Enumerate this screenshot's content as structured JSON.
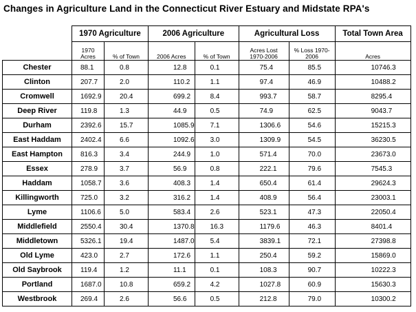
{
  "title": "Changes in Agriculture Land in the Connecticut River Estuary and Midstate RPA's",
  "groups": {
    "ag1970": "1970 Agriculture",
    "ag2006": "2006 Agriculture",
    "loss": "Agricultural Loss",
    "total": "Total Town Area"
  },
  "subheaders": {
    "acres1970": "1970 Acres",
    "pct1970": "% of Town",
    "acres2006": "2006 Acres",
    "pct2006": "% of Town",
    "acres_lost": "Acres Lost 1970-2006",
    "pct_loss": "% Loss 1970-2006",
    "total_acres": "Acres"
  },
  "rows": [
    {
      "town": "Chester",
      "a1970": "88.1",
      "p1970": "0.8",
      "a2006": "12.8",
      "p2006": "0.1",
      "lost": "75.4",
      "ploss": "85.5",
      "total": "10746.3"
    },
    {
      "town": "Clinton",
      "a1970": "207.7",
      "p1970": "2.0",
      "a2006": "110.2",
      "p2006": "1.1",
      "lost": "97.4",
      "ploss": "46.9",
      "total": "10488.2"
    },
    {
      "town": "Cromwell",
      "a1970": "1692.9",
      "p1970": "20.4",
      "a2006": "699.2",
      "p2006": "8.4",
      "lost": "993.7",
      "ploss": "58.7",
      "total": "8295.4"
    },
    {
      "town": "Deep River",
      "a1970": "119.8",
      "p1970": "1.3",
      "a2006": "44.9",
      "p2006": "0.5",
      "lost": "74.9",
      "ploss": "62.5",
      "total": "9043.7"
    },
    {
      "town": "Durham",
      "a1970": "2392.6",
      "p1970": "15.7",
      "a2006": "1085.9",
      "p2006": "7.1",
      "lost": "1306.6",
      "ploss": "54.6",
      "total": "15215.3"
    },
    {
      "town": "East Haddam",
      "a1970": "2402.4",
      "p1970": "6.6",
      "a2006": "1092.6",
      "p2006": "3.0",
      "lost": "1309.9",
      "ploss": "54.5",
      "total": "36230.5"
    },
    {
      "town": "East Hampton",
      "a1970": "816.3",
      "p1970": "3.4",
      "a2006": "244.9",
      "p2006": "1.0",
      "lost": "571.4",
      "ploss": "70.0",
      "total": "23673.0"
    },
    {
      "town": "Essex",
      "a1970": "278.9",
      "p1970": "3.7",
      "a2006": "56.9",
      "p2006": "0.8",
      "lost": "222.1",
      "ploss": "79.6",
      "total": "7545.3"
    },
    {
      "town": "Haddam",
      "a1970": "1058.7",
      "p1970": "3.6",
      "a2006": "408.3",
      "p2006": "1.4",
      "lost": "650.4",
      "ploss": "61.4",
      "total": "29624.3"
    },
    {
      "town": "Killingworth",
      "a1970": "725.0",
      "p1970": "3.2",
      "a2006": "316.2",
      "p2006": "1.4",
      "lost": "408.9",
      "ploss": "56.4",
      "total": "23003.1"
    },
    {
      "town": "Lyme",
      "a1970": "1106.6",
      "p1970": "5.0",
      "a2006": "583.4",
      "p2006": "2.6",
      "lost": "523.1",
      "ploss": "47.3",
      "total": "22050.4"
    },
    {
      "town": "Middlefield",
      "a1970": "2550.4",
      "p1970": "30.4",
      "a2006": "1370.8",
      "p2006": "16.3",
      "lost": "1179.6",
      "ploss": "46.3",
      "total": "8401.4"
    },
    {
      "town": "Middletown",
      "a1970": "5326.1",
      "p1970": "19.4",
      "a2006": "1487.0",
      "p2006": "5.4",
      "lost": "3839.1",
      "ploss": "72.1",
      "total": "27398.8"
    },
    {
      "town": "Old Lyme",
      "a1970": "423.0",
      "p1970": "2.7",
      "a2006": "172.6",
      "p2006": "1.1",
      "lost": "250.4",
      "ploss": "59.2",
      "total": "15869.0"
    },
    {
      "town": "Old Saybrook",
      "a1970": "119.4",
      "p1970": "1.2",
      "a2006": "11.1",
      "p2006": "0.1",
      "lost": "108.3",
      "ploss": "90.7",
      "total": "10222.3"
    },
    {
      "town": "Portland",
      "a1970": "1687.0",
      "p1970": "10.8",
      "a2006": "659.2",
      "p2006": "4.2",
      "lost": "1027.8",
      "ploss": "60.9",
      "total": "15630.3"
    },
    {
      "town": "Westbrook",
      "a1970": "269.4",
      "p1970": "2.6",
      "a2006": "56.6",
      "p2006": "0.5",
      "lost": "212.8",
      "ploss": "79.0",
      "total": "10300.2"
    }
  ]
}
